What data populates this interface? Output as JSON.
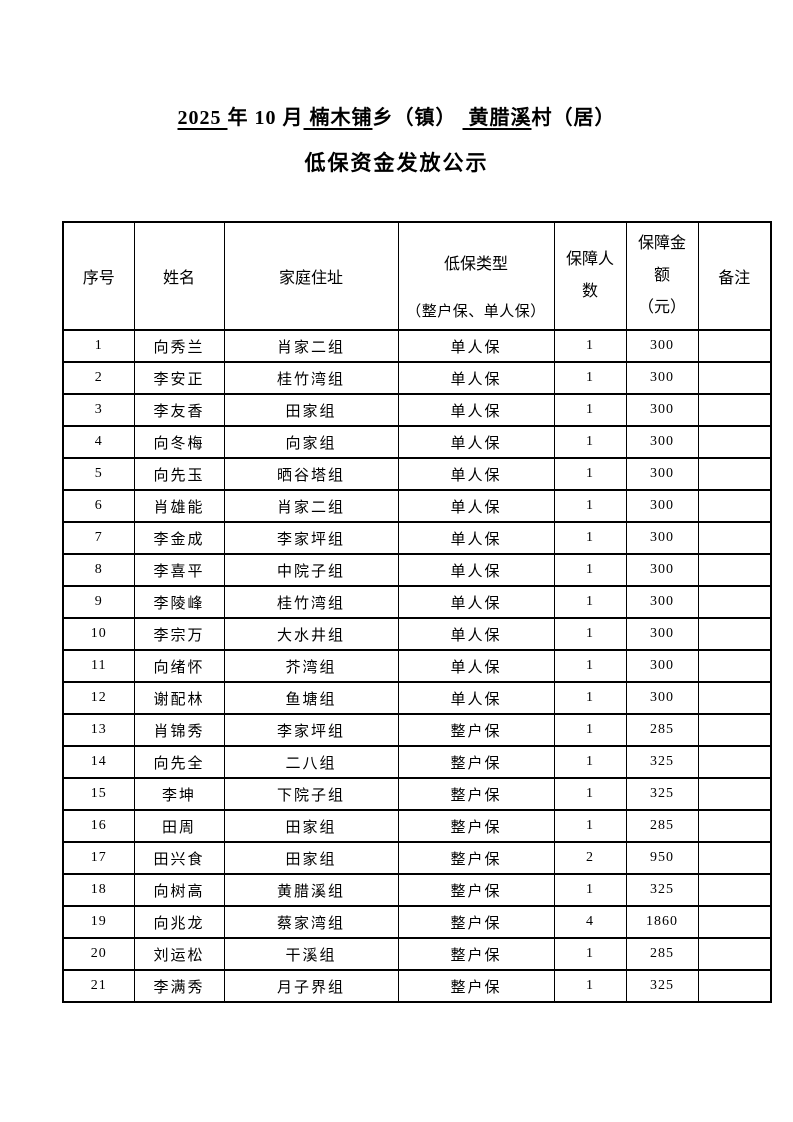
{
  "title": {
    "segments": [
      {
        "text": "2025 ",
        "underline": true
      },
      {
        "text": "年 10 月",
        "underline": false
      },
      {
        "text": " 楠木铺",
        "underline": true
      },
      {
        "text": "乡（镇） ",
        "underline": false
      },
      {
        "text": " 黄腊溪",
        "underline": true
      },
      {
        "text": "村（居）",
        "underline": false
      }
    ],
    "subtitle": "低保资金发放公示"
  },
  "colors": {
    "page_background": "#ffffff",
    "text": "#000000",
    "border": "#000000"
  },
  "table": {
    "columns": {
      "index": "序号",
      "name": "姓名",
      "address": "家庭住址",
      "type": "低保类型",
      "type_sub": "（整户保、单人保）",
      "people": "保障人数",
      "amount": "保障金额",
      "amount_sub": "（元）",
      "note": "备注"
    },
    "rows": [
      {
        "index": "1",
        "name": "向秀兰",
        "address": "肖家二组",
        "type": "单人保",
        "people": "1",
        "amount": "300",
        "note": ""
      },
      {
        "index": "2",
        "name": "李安正",
        "address": "桂竹湾组",
        "type": "单人保",
        "people": "1",
        "amount": "300",
        "note": ""
      },
      {
        "index": "3",
        "name": "李友香",
        "address": "田家组",
        "type": "单人保",
        "people": "1",
        "amount": "300",
        "note": ""
      },
      {
        "index": "4",
        "name": "向冬梅",
        "address": "向家组",
        "type": "单人保",
        "people": "1",
        "amount": "300",
        "note": ""
      },
      {
        "index": "5",
        "name": "向先玉",
        "address": "晒谷塔组",
        "type": "单人保",
        "people": "1",
        "amount": "300",
        "note": ""
      },
      {
        "index": "6",
        "name": "肖雄能",
        "address": "肖家二组",
        "type": "单人保",
        "people": "1",
        "amount": "300",
        "note": ""
      },
      {
        "index": "7",
        "name": "李金成",
        "address": "李家坪组",
        "type": "单人保",
        "people": "1",
        "amount": "300",
        "note": ""
      },
      {
        "index": "8",
        "name": "李喜平",
        "address": "中院子组",
        "type": "单人保",
        "people": "1",
        "amount": "300",
        "note": ""
      },
      {
        "index": "9",
        "name": "李陵峰",
        "address": "桂竹湾组",
        "type": "单人保",
        "people": "1",
        "amount": "300",
        "note": ""
      },
      {
        "index": "10",
        "name": "李宗万",
        "address": "大水井组",
        "type": "单人保",
        "people": "1",
        "amount": "300",
        "note": ""
      },
      {
        "index": "11",
        "name": "向绪怀",
        "address": "芥湾组",
        "type": "单人保",
        "people": "1",
        "amount": "300",
        "note": ""
      },
      {
        "index": "12",
        "name": "谢配林",
        "address": "鱼塘组",
        "type": "单人保",
        "people": "1",
        "amount": "300",
        "note": ""
      },
      {
        "index": "13",
        "name": "肖锦秀",
        "address": "李家坪组",
        "type": "整户保",
        "people": "1",
        "amount": "285",
        "note": ""
      },
      {
        "index": "14",
        "name": "向先全",
        "address": "二八组",
        "type": "整户保",
        "people": "1",
        "amount": "325",
        "note": ""
      },
      {
        "index": "15",
        "name": "李坤",
        "address": "下院子组",
        "type": "整户保",
        "people": "1",
        "amount": "325",
        "note": ""
      },
      {
        "index": "16",
        "name": "田周",
        "address": "田家组",
        "type": "整户保",
        "people": "1",
        "amount": "285",
        "note": ""
      },
      {
        "index": "17",
        "name": "田兴食",
        "address": "田家组",
        "type": "整户保",
        "people": "2",
        "amount": "950",
        "note": ""
      },
      {
        "index": "18",
        "name": "向树高",
        "address": "黄腊溪组",
        "type": "整户保",
        "people": "1",
        "amount": "325",
        "note": ""
      },
      {
        "index": "19",
        "name": "向兆龙",
        "address": "蔡家湾组",
        "type": "整户保",
        "people": "4",
        "amount": "1860",
        "note": ""
      },
      {
        "index": "20",
        "name": "刘运松",
        "address": "干溪组",
        "type": "整户保",
        "people": "1",
        "amount": "285",
        "note": ""
      },
      {
        "index": "21",
        "name": "李满秀",
        "address": "月子界组",
        "type": "整户保",
        "people": "1",
        "amount": "325",
        "note": ""
      }
    ]
  }
}
